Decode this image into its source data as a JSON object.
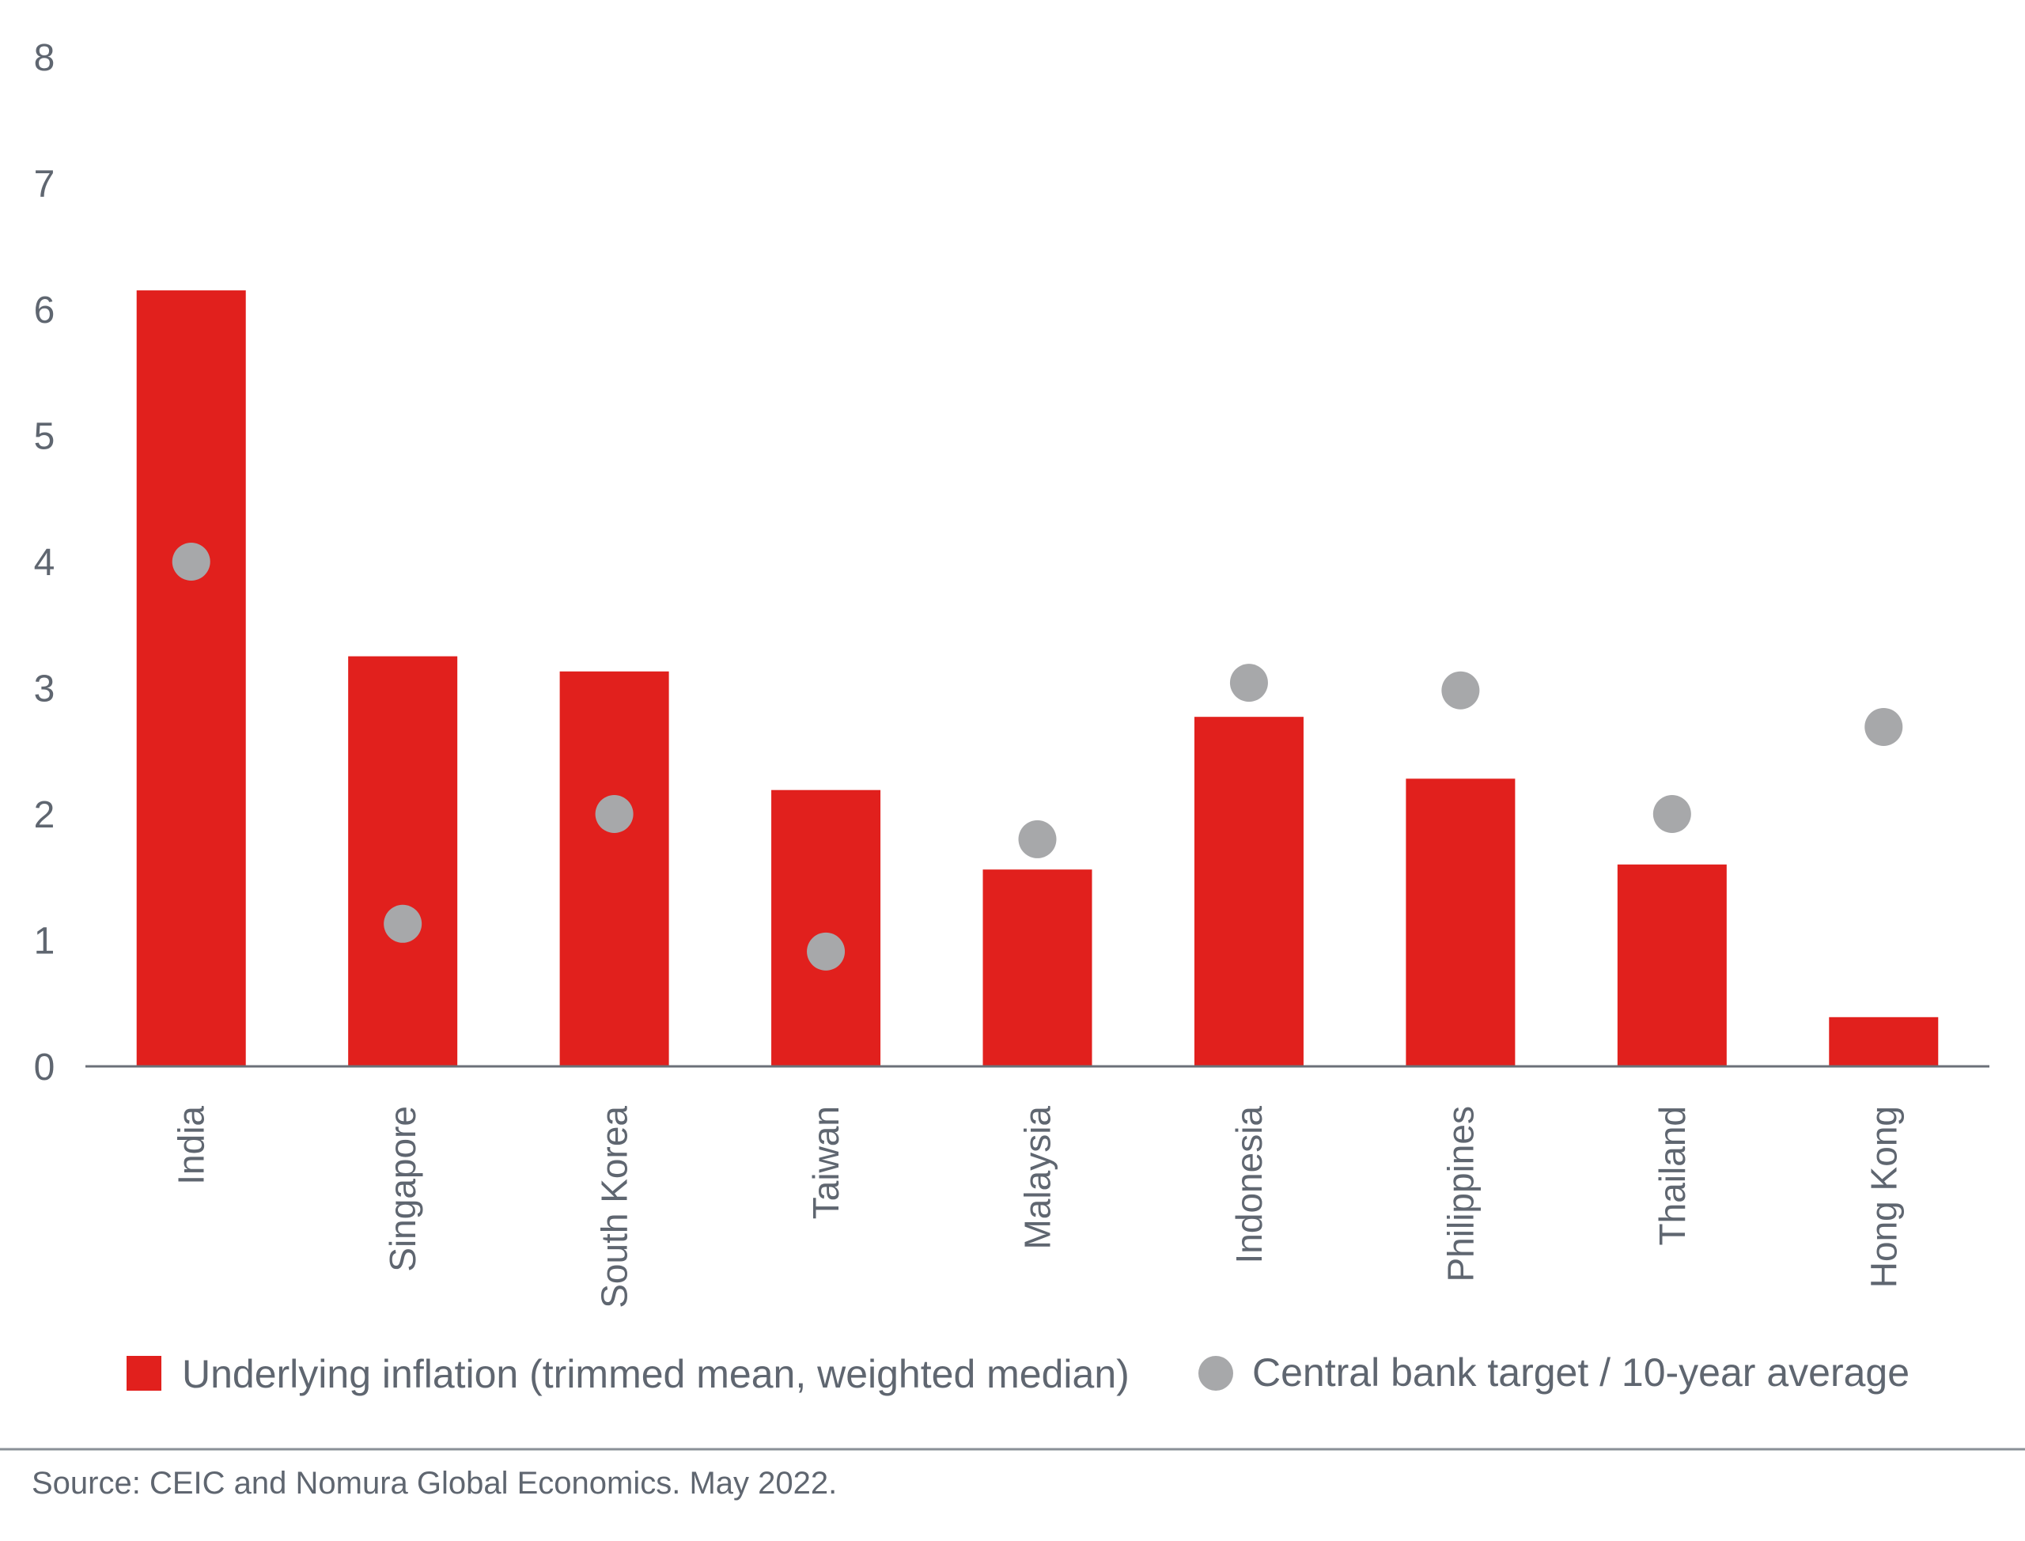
{
  "chart_data": {
    "type": "bar",
    "categories": [
      "India",
      "Singapore",
      "South Korea",
      "Taiwan",
      "Malaysia",
      "Indonesia",
      "Philippines",
      "Thailand",
      "Hong Kong"
    ],
    "series": [
      {
        "name": "Underlying inflation (trimmed mean, weighted median)",
        "type": "bar",
        "color": "#e1201d",
        "values": [
          6.15,
          3.25,
          3.13,
          2.19,
          1.56,
          2.77,
          2.28,
          1.6,
          0.39
        ]
      },
      {
        "name": "Central bank target / 10-year average",
        "type": "scatter",
        "color": "#a7a8aa",
        "values": [
          4.0,
          1.13,
          2.0,
          0.91,
          1.8,
          3.04,
          2.98,
          2.0,
          2.69
        ]
      }
    ],
    "yticks": [
      "0",
      "1",
      "2",
      "3",
      "4",
      "5",
      "6",
      "7",
      "8"
    ],
    "ylim": [
      0,
      8
    ],
    "grid": false,
    "legend_position": "bottom"
  },
  "source": "Source: CEIC and Nomura Global Economics. May 2022."
}
